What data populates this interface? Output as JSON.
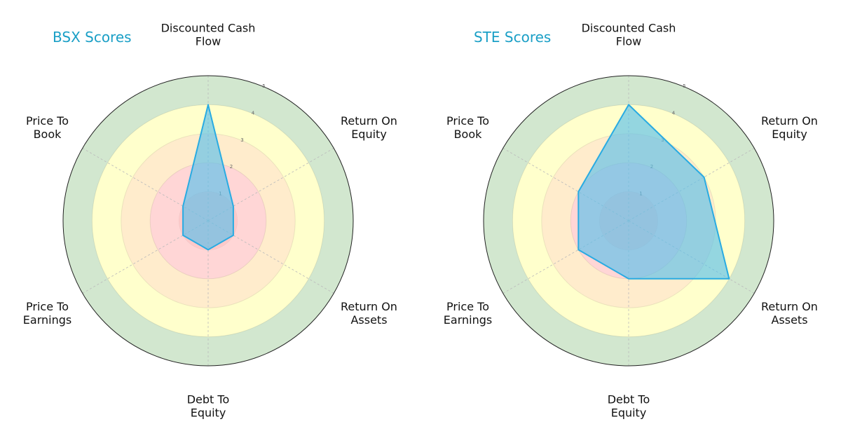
{
  "chart_data": [
    {
      "type": "radar",
      "title": "BSX Scores",
      "categories": [
        "Discounted Cash\nFlow",
        "Return On\nEquity",
        "Return On\nAssets",
        "Debt To\nEquity",
        "Price To\nEarnings",
        "Price To\nBook"
      ],
      "series": [
        {
          "values": [
            4,
            1,
            1,
            1,
            1,
            1
          ]
        }
      ],
      "rlim": [
        0,
        5
      ],
      "rticks": [
        "1",
        "2",
        "3",
        "4",
        "5"
      ],
      "grid": true
    },
    {
      "type": "radar",
      "title": "STE Scores",
      "categories": [
        "Discounted Cash\nFlow",
        "Return On\nEquity",
        "Return On\nAssets",
        "Debt To\nEquity",
        "Price To\nEarnings",
        "Price To\nBook"
      ],
      "series": [
        {
          "values": [
            4,
            3,
            4,
            2,
            2,
            2
          ]
        }
      ],
      "rlim": [
        0,
        5
      ],
      "rticks": [
        "1",
        "2",
        "3",
        "4",
        "5"
      ],
      "grid": true
    }
  ],
  "colors": {
    "title": "#1a9fc6",
    "series_line": "#29abe2",
    "series_fill": "#5bc0eb",
    "band_1": "#ffd6d6",
    "band_2": "#ffd6d6",
    "band_3": "#ffeccc",
    "band_4": "#ffffcc",
    "band_5": "#d2e7cf",
    "outline": "#222222"
  }
}
